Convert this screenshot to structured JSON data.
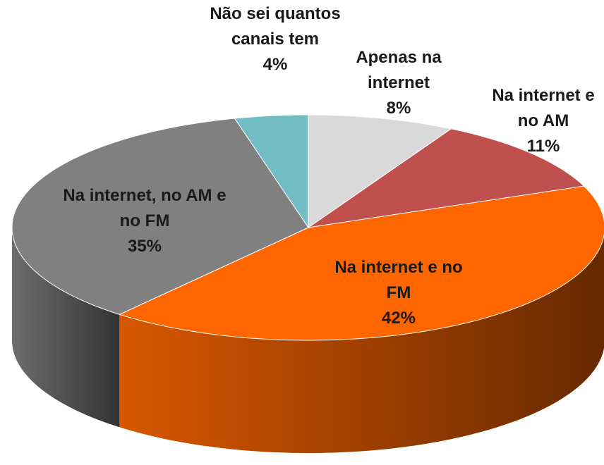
{
  "chart_data": {
    "type": "pie",
    "categories": [
      "Apenas na internet",
      "Na internet e no AM",
      "Na internet e no FM",
      "Na internet, no AM e no FM",
      "Não sei quantos canais tem"
    ],
    "values": [
      8,
      11,
      42,
      35,
      4
    ],
    "value_labels": [
      "8%",
      "11%",
      "42%",
      "35%",
      "4%"
    ],
    "colors": [
      "#d9d9d9",
      "#c0504d",
      "#ff6600",
      "#808080",
      "#72bcc4"
    ]
  }
}
